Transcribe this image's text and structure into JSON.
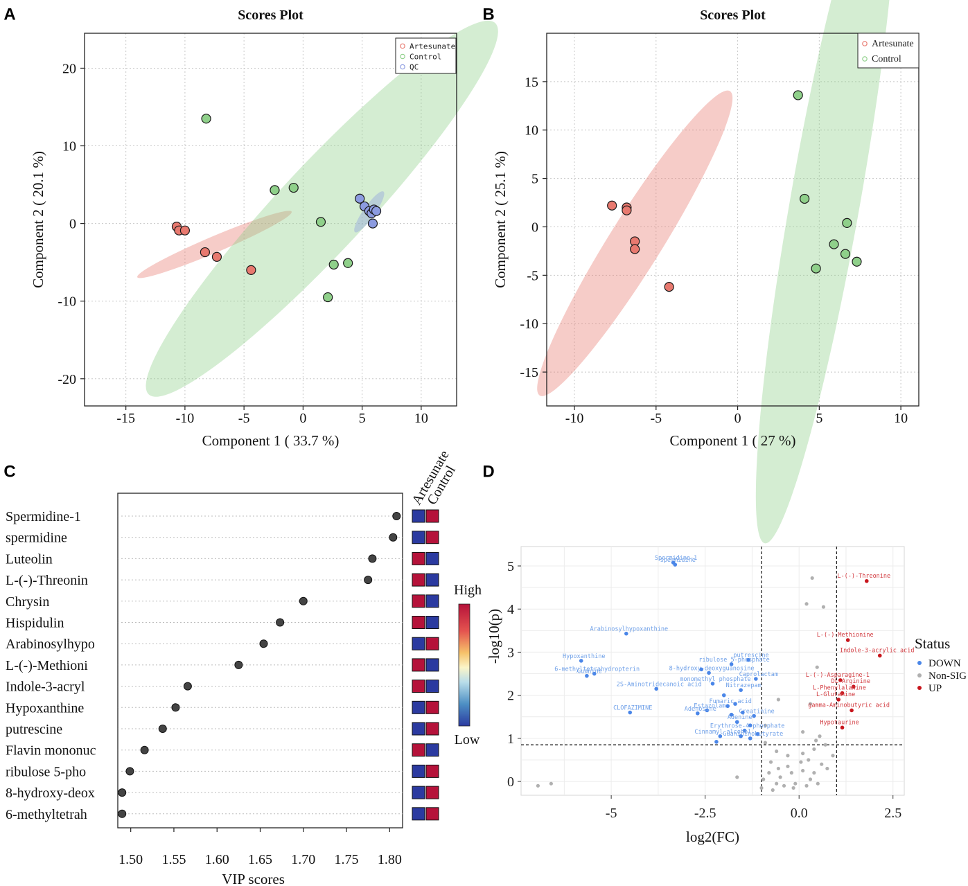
{
  "colors": {
    "artesunate": "#e8796f",
    "control": "#8fd08a",
    "qc": "#8c9be0",
    "down": "#4a86e8",
    "up": "#c8161d",
    "nonsig": "#b0b0b0",
    "heat_high": "#b5123a",
    "heat_low": "#2b3aa0"
  },
  "panel_labels": [
    "A",
    "B",
    "C",
    "D"
  ],
  "chart_data": [
    {
      "panel": "A",
      "type": "scatter",
      "title": "Scores Plot",
      "xlabel": "Component 1 ( 33.7 %)",
      "ylabel": "Component 2 ( 20.1 %)",
      "xlim": [
        -18.5,
        13
      ],
      "ylim": [
        -23.5,
        24.5
      ],
      "xticks": [
        -15,
        -10,
        -5,
        0,
        5,
        10
      ],
      "yticks": [
        20,
        10,
        0,
        -10,
        -20
      ],
      "xtick_labels": [
        "-15",
        "-10",
        "-5",
        "0",
        "5",
        "10"
      ],
      "ytick_labels": [
        "20",
        "10",
        "0",
        "-10",
        "-20"
      ],
      "grid": true,
      "legend": [
        "Artesunate",
        "Control",
        "QC"
      ],
      "legend_position": "top-right",
      "series": [
        {
          "name": "Artesunate",
          "x": [
            -10.7,
            -10.5,
            -10.0,
            -8.3,
            -7.3,
            -4.4
          ],
          "y": [
            -0.4,
            -0.9,
            -0.9,
            -3.7,
            -4.3,
            -6.0
          ]
        },
        {
          "name": "Control",
          "x": [
            -8.2,
            -2.4,
            -0.8,
            1.5,
            2.6,
            3.8,
            2.1
          ],
          "y": [
            13.5,
            4.3,
            4.6,
            0.2,
            -5.3,
            -5.1,
            -9.5
          ]
        },
        {
          "name": "QC",
          "x": [
            4.8,
            5.2,
            5.6,
            5.8,
            6.0,
            6.2,
            5.9
          ],
          "y": [
            3.2,
            2.2,
            1.6,
            1.3,
            1.8,
            1.6,
            0.0
          ]
        }
      ],
      "ellipses": [
        {
          "group": "Artesunate",
          "cx": -7.5,
          "cy": -2.7,
          "rx": 7.1,
          "ry": 1.05,
          "angle_deg": -23
        },
        {
          "group": "Control",
          "cx": 1.6,
          "cy": 1.9,
          "rx": 21.5,
          "ry": 5.6,
          "angle_deg": -47
        },
        {
          "group": "QC",
          "cx": 5.6,
          "cy": 1.5,
          "rx": 2.1,
          "ry": 0.75,
          "angle_deg": -55
        }
      ]
    },
    {
      "panel": "B",
      "type": "scatter",
      "title": "Scores Plot",
      "xlabel": "Component 1 ( 27 %)",
      "ylabel": "Component 2 ( 25.1 %)",
      "xlim": [
        -11.7,
        11.1
      ],
      "ylim": [
        -18.5,
        20
      ],
      "xticks": [
        -10,
        -5,
        0,
        5,
        10
      ],
      "yticks": [
        15,
        10,
        5,
        0,
        -5,
        -10,
        -15
      ],
      "xtick_labels": [
        "-10",
        "-5",
        "0",
        "5",
        "10"
      ],
      "ytick_labels": [
        "15",
        "10",
        "5",
        "0",
        "-5",
        "-10",
        "-15"
      ],
      "grid": true,
      "legend": [
        "Artesunate",
        "Control"
      ],
      "legend_position": "top-right",
      "series": [
        {
          "name": "Artesunate",
          "x": [
            -7.7,
            -6.8,
            -6.8,
            -6.3,
            -6.3,
            -4.2
          ],
          "y": [
            2.2,
            2.0,
            1.7,
            -1.5,
            -2.3,
            -6.2
          ]
        },
        {
          "name": "Control",
          "x": [
            3.7,
            4.1,
            6.7,
            5.9,
            6.6,
            7.3,
            4.8
          ],
          "y": [
            13.6,
            2.9,
            0.4,
            -1.8,
            -2.8,
            -3.6,
            -4.3
          ]
        }
      ],
      "ellipses": [
        {
          "group": "Artesunate",
          "cx": -6.3,
          "cy": -1.7,
          "rx": 11.0,
          "ry": 2.7,
          "angle_deg": -58
        },
        {
          "group": "Control",
          "cx": 5.4,
          "cy": 3.0,
          "rx": 21.5,
          "ry": 3.6,
          "angle_deg": -80
        }
      ]
    },
    {
      "panel": "C",
      "type": "scatter",
      "subtype": "VIP dot plot",
      "xlabel": "VIP scores",
      "xlim": [
        1.485,
        1.815
      ],
      "xticks": [
        1.5,
        1.55,
        1.6,
        1.65,
        1.7,
        1.75,
        1.8
      ],
      "xtick_labels": [
        "1.50",
        "1.55",
        "1.60",
        "1.65",
        "1.70",
        "1.75",
        "1.80"
      ],
      "categories": [
        "Spermidine-1",
        "spermidine",
        "Luteolin",
        "L-(-)-Threonin",
        "Chrysin",
        "Hispidulin",
        "Arabinosylhypo",
        "L-(-)-Methioni",
        "Indole-3-acryl",
        "Hypoxanthine",
        "putrescine",
        "Flavin mononuc",
        "ribulose 5-pho",
        "8-hydroxy-deox",
        "6-methyltetrah"
      ],
      "values": [
        1.808,
        1.804,
        1.78,
        1.775,
        1.7,
        1.673,
        1.654,
        1.625,
        1.566,
        1.552,
        1.537,
        1.516,
        1.499,
        1.49,
        1.49
      ],
      "heatmap_columns": [
        "Artesunate",
        "Control"
      ],
      "heatmap": [
        [
          "Low",
          "High"
        ],
        [
          "Low",
          "High"
        ],
        [
          "High",
          "Low"
        ],
        [
          "High",
          "Low"
        ],
        [
          "High",
          "Low"
        ],
        [
          "High",
          "Low"
        ],
        [
          "Low",
          "High"
        ],
        [
          "High",
          "Low"
        ],
        [
          "High",
          "Low"
        ],
        [
          "Low",
          "High"
        ],
        [
          "Low",
          "High"
        ],
        [
          "High",
          "Low"
        ],
        [
          "Low",
          "High"
        ],
        [
          "Low",
          "High"
        ],
        [
          "Low",
          "High"
        ]
      ],
      "colorbar": {
        "high_label": "High",
        "low_label": "Low"
      }
    },
    {
      "panel": "D",
      "type": "scatter",
      "subtype": "volcano",
      "xlabel": "log2(FC)",
      "ylabel": "-log10(p)",
      "xlim": [
        -7.4,
        2.8
      ],
      "ylim": [
        -0.32,
        5.45
      ],
      "xticks": [
        -5,
        -2.5,
        0.0,
        2.5
      ],
      "yticks": [
        0,
        1,
        2,
        3,
        4,
        5
      ],
      "xtick_labels": [
        "-5",
        "-2.5",
        "0.0",
        "2.5"
      ],
      "ytick_labels": [
        "0",
        "1",
        "2",
        "3",
        "4",
        "5"
      ],
      "thresholds": {
        "x": [
          -1,
          1
        ],
        "y": 0.85
      },
      "grid": true,
      "legend_title": "Status",
      "legend": [
        "DOWN",
        "Non-SIG",
        "UP"
      ],
      "legend_position": "right",
      "points_down": [
        {
          "label": "Spermidine-1",
          "x": -3.35,
          "y": 5.08
        },
        {
          "label": "spermidine",
          "x": -3.3,
          "y": 5.03
        },
        {
          "label": "Arabinosylhypoxanthine",
          "x": -4.6,
          "y": 3.43
        },
        {
          "label": "Hypoxanthine",
          "x": -5.8,
          "y": 2.8
        },
        {
          "label": "6-methyltetrahydropterin",
          "x": -5.45,
          "y": 2.5
        },
        {
          "label": "Guanine",
          "x": -5.65,
          "y": 2.45
        },
        {
          "label": "ribulose 5-phosphate",
          "x": -1.8,
          "y": 2.72
        },
        {
          "label": "putrescine",
          "x": -1.35,
          "y": 2.82
        },
        {
          "label": "8-hydroxy-deoxyguanosine",
          "x": -2.4,
          "y": 2.52
        },
        {
          "label": "Caprolactam",
          "x": -1.15,
          "y": 2.38
        },
        {
          "label": "monomethyl phosphate",
          "x": -2.3,
          "y": 2.27
        },
        {
          "label": "Nitrazepam",
          "x": -1.55,
          "y": 2.12
        },
        {
          "label": "2S-Aminotridecanoic acid",
          "x": -3.8,
          "y": 2.15
        },
        {
          "label": "Fumaric acid",
          "x": -1.9,
          "y": 1.75
        },
        {
          "label": "CLOFAZIMINE",
          "x": -4.5,
          "y": 1.6
        },
        {
          "label": "Estazolam",
          "x": -2.45,
          "y": 1.65
        },
        {
          "label": "Adenosine",
          "x": -2.7,
          "y": 1.58
        },
        {
          "label": "Creatinine",
          "x": -1.2,
          "y": 1.52
        },
        {
          "label": "Adenine",
          "x": -1.65,
          "y": 1.38
        },
        {
          "label": "Erythrose-4-phosphate",
          "x": -1.45,
          "y": 1.18
        },
        {
          "label": "Cinnamyl alcohol",
          "x": -2.1,
          "y": 1.05
        },
        {
          "label": "Guanidinobutyrate",
          "x": -1.3,
          "y": 1.0
        },
        {
          "label": "",
          "x": -2.6,
          "y": 2.6
        },
        {
          "label": "",
          "x": -2.0,
          "y": 2.0
        },
        {
          "label": "",
          "x": -1.7,
          "y": 1.8
        },
        {
          "label": "",
          "x": -1.5,
          "y": 1.6
        },
        {
          "label": "",
          "x": -1.8,
          "y": 1.55
        },
        {
          "label": "",
          "x": -1.3,
          "y": 1.3
        },
        {
          "label": "",
          "x": -1.1,
          "y": 1.1
        },
        {
          "label": "",
          "x": -1.55,
          "y": 1.05
        },
        {
          "label": "",
          "x": -2.2,
          "y": 0.92
        }
      ],
      "points_up": [
        {
          "label": "L-(-)-Threonine",
          "x": 1.8,
          "y": 4.65
        },
        {
          "label": "L-(-)-Methionine",
          "x": 1.3,
          "y": 3.28
        },
        {
          "label": "Indole-3-acrylic acid",
          "x": 2.15,
          "y": 2.92
        },
        {
          "label": "L-(-)-Asparagine-1",
          "x": 1.1,
          "y": 2.35
        },
        {
          "label": "DL-Arginine",
          "x": 1.45,
          "y": 2.2
        },
        {
          "label": "L-Phenylalanine",
          "x": 1.15,
          "y": 2.05
        },
        {
          "label": "L-Glutamine",
          "x": 1.05,
          "y": 1.9
        },
        {
          "label": "gamma-Aminobutyric acid",
          "x": 1.4,
          "y": 1.65
        },
        {
          "label": "Hypotaurine",
          "x": 1.15,
          "y": 1.25
        }
      ],
      "points_nonsig": [
        [
          0.35,
          4.72
        ],
        [
          0.2,
          4.12
        ],
        [
          0.65,
          4.05
        ],
        [
          0.48,
          2.65
        ],
        [
          -0.55,
          1.9
        ],
        [
          0.3,
          1.8
        ],
        [
          -0.9,
          1.3
        ],
        [
          0.1,
          1.15
        ],
        [
          0.45,
          0.95
        ],
        [
          0.55,
          1.05
        ],
        [
          -6.6,
          -0.05
        ],
        [
          -6.95,
          -0.1
        ],
        [
          -0.9,
          0.9
        ],
        [
          -0.6,
          0.7
        ],
        [
          -0.3,
          0.6
        ],
        [
          0.1,
          0.65
        ],
        [
          0.4,
          0.75
        ],
        [
          0.7,
          0.85
        ],
        [
          0.9,
          0.6
        ],
        [
          -0.8,
          0.2
        ],
        [
          -0.5,
          0.1
        ],
        [
          -0.2,
          0.2
        ],
        [
          0.1,
          0.25
        ],
        [
          0.3,
          0.05
        ],
        [
          -0.6,
          -0.05
        ],
        [
          -0.4,
          -0.1
        ],
        [
          -0.1,
          -0.05
        ],
        [
          0.2,
          -0.1
        ],
        [
          -0.75,
          0.45
        ],
        [
          0.6,
          0.4
        ],
        [
          -0.3,
          0.35
        ],
        [
          0.05,
          0.45
        ],
        [
          -0.95,
          0.05
        ],
        [
          -0.15,
          -0.15
        ],
        [
          0.4,
          0.2
        ],
        [
          -0.55,
          0.3
        ],
        [
          0.25,
          0.5
        ],
        [
          -1.65,
          0.1
        ],
        [
          -1.0,
          -0.15
        ],
        [
          0.75,
          0.3
        ],
        [
          -0.7,
          -0.2
        ],
        [
          0.5,
          -0.05
        ]
      ]
    }
  ]
}
